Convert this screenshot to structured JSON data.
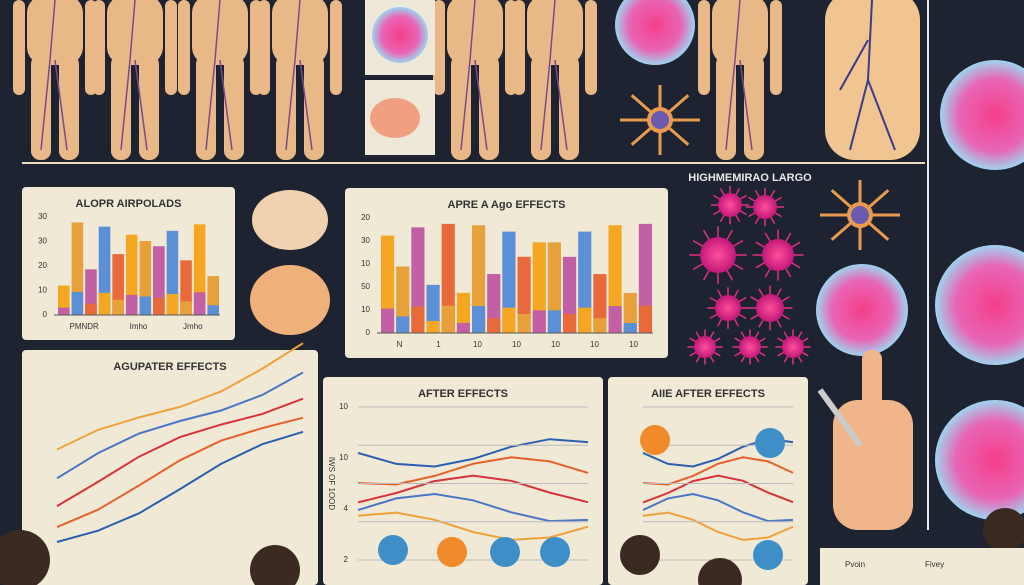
{
  "top_label": "HIGHMEMIRAO LARGO",
  "panels": [
    {
      "title": "ALOPR AIRPOLADS",
      "y_labels": [
        "30",
        "30",
        "20",
        "10",
        "0"
      ],
      "x_labels": [
        "PMNDR",
        "Imho",
        "Jmho"
      ]
    },
    {
      "title": "APRE A Ago EFFECTS",
      "y_labels": [
        "20",
        "30",
        "10",
        "50",
        "10",
        "0"
      ],
      "x_labels": [
        "N",
        "1",
        "10",
        "10",
        "10",
        "10",
        "10"
      ]
    },
    {
      "title": "AGUPATER EFFECTS"
    },
    {
      "title": "AFTER EFFECTS",
      "axis_title": "IWS OF 1OOD",
      "y_labels": [
        "10",
        "10",
        "4",
        "2"
      ]
    },
    {
      "title": "AIIE AFTER EFFECTS"
    }
  ],
  "footer": [
    "Pvoin",
    "Fivey"
  ]
}
